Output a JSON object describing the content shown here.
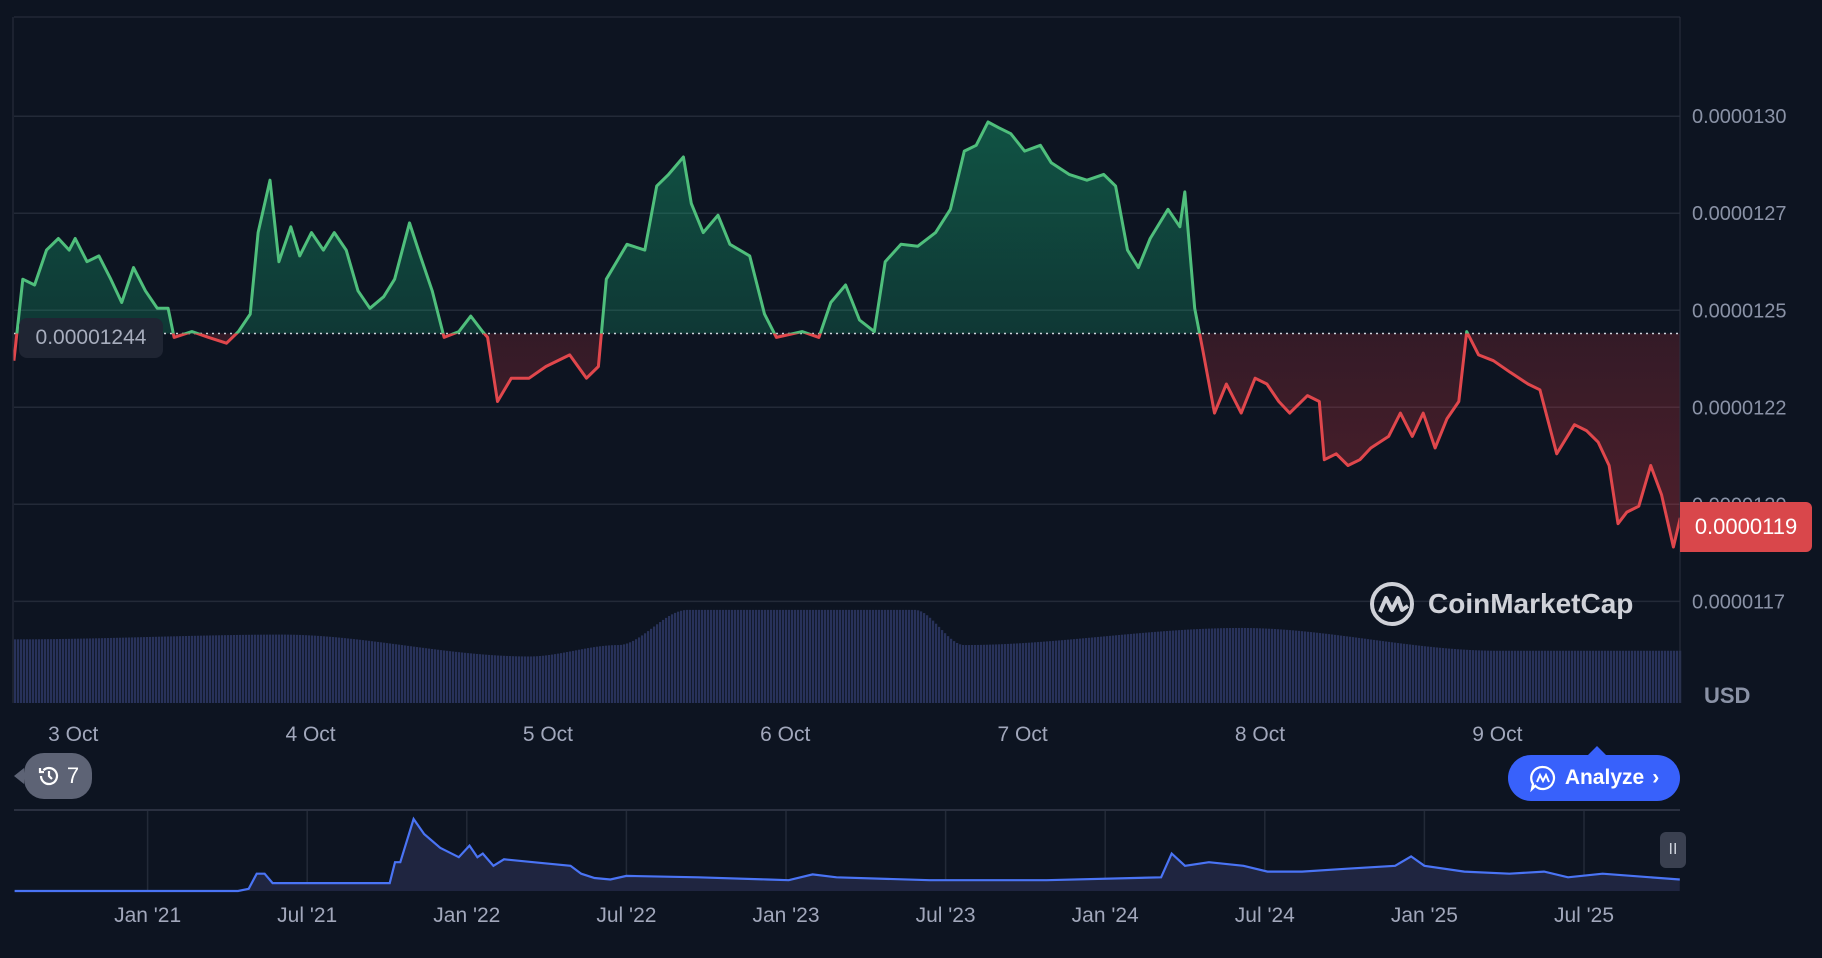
{
  "chart_data": {
    "type": "line",
    "title": "",
    "currency_label": "USD",
    "value_unit": "1e-7 USD",
    "x_unit": "hours since 3 Oct 00:00",
    "baseline_value": 124.4,
    "baseline_label": "0.00001244",
    "current_price_label": "0.0000119",
    "y_ticks": [
      {
        "value": 130,
        "label": "0.0000130"
      },
      {
        "value": 127.5,
        "label": "0.0000127"
      },
      {
        "value": 125,
        "label": "0.0000125"
      },
      {
        "value": 122.5,
        "label": "0.0000122"
      },
      {
        "value": 120,
        "label": "0.0000120"
      },
      {
        "value": 117.5,
        "label": "0.0000117"
      }
    ],
    "x_ticks": [
      {
        "hours": 0,
        "label": "3 Oct"
      },
      {
        "hours": 24,
        "label": "4 Oct"
      },
      {
        "hours": 48,
        "label": "5 Oct"
      },
      {
        "hours": 72,
        "label": "6 Oct"
      },
      {
        "hours": 96,
        "label": "7 Oct"
      },
      {
        "hours": 120,
        "label": "8 Oct"
      },
      {
        "hours": 144,
        "label": "9 Oct"
      }
    ],
    "ylim": [
      117.5,
      130.8
    ],
    "xlim": [
      -6,
      162.5
    ],
    "colors": {
      "up": "#16c784",
      "up_line": "#4fbf7c",
      "down": "#ea3943",
      "down_line": "#e0474c",
      "volume": "#2a3457",
      "navigator": "#4a74f5"
    },
    "series": [
      {
        "name": "price",
        "points": [
          [
            -6.0,
            123.7
          ],
          [
            -5.1,
            125.8
          ],
          [
            -3.9,
            125.65
          ],
          [
            -2.7,
            126.55
          ],
          [
            -1.5,
            126.85
          ],
          [
            -0.4,
            126.55
          ],
          [
            0.2,
            126.85
          ],
          [
            1.4,
            126.25
          ],
          [
            2.6,
            126.4
          ],
          [
            3.8,
            125.8
          ],
          [
            4.9,
            125.2
          ],
          [
            6.1,
            126.1
          ],
          [
            7.3,
            125.5
          ],
          [
            8.5,
            125.05
          ],
          [
            9.6,
            125.05
          ],
          [
            10.2,
            124.3
          ],
          [
            12.0,
            124.45
          ],
          [
            13.7,
            124.3
          ],
          [
            15.5,
            124.15
          ],
          [
            16.7,
            124.45
          ],
          [
            17.9,
            124.9
          ],
          [
            18.7,
            127.0
          ],
          [
            19.9,
            128.35
          ],
          [
            20.8,
            126.25
          ],
          [
            22.0,
            127.15
          ],
          [
            22.9,
            126.4
          ],
          [
            24.1,
            127.0
          ],
          [
            25.3,
            126.55
          ],
          [
            26.4,
            127.0
          ],
          [
            27.6,
            126.55
          ],
          [
            28.8,
            125.5
          ],
          [
            30.0,
            125.05
          ],
          [
            31.4,
            125.35
          ],
          [
            32.5,
            125.8
          ],
          [
            34.0,
            127.25
          ],
          [
            35.1,
            126.4
          ],
          [
            36.3,
            125.5
          ],
          [
            37.5,
            124.3
          ],
          [
            39.0,
            124.45
          ],
          [
            40.2,
            124.85
          ],
          [
            41.4,
            124.45
          ],
          [
            41.9,
            124.3
          ],
          [
            42.9,
            122.65
          ],
          [
            44.3,
            123.25
          ],
          [
            46.1,
            123.25
          ],
          [
            47.8,
            123.55
          ],
          [
            50.2,
            123.85
          ],
          [
            51.9,
            123.25
          ],
          [
            53.1,
            123.55
          ],
          [
            53.9,
            125.8
          ],
          [
            56.0,
            126.7
          ],
          [
            57.8,
            126.55
          ],
          [
            59.0,
            128.2
          ],
          [
            60.2,
            128.5
          ],
          [
            61.7,
            128.95
          ],
          [
            62.5,
            127.75
          ],
          [
            63.7,
            127.0
          ],
          [
            65.2,
            127.45
          ],
          [
            66.4,
            126.7
          ],
          [
            68.4,
            126.4
          ],
          [
            69.9,
            124.9
          ],
          [
            71.1,
            124.3
          ],
          [
            73.7,
            124.45
          ],
          [
            75.4,
            124.3
          ],
          [
            76.6,
            125.2
          ],
          [
            78.1,
            125.65
          ],
          [
            79.5,
            124.75
          ],
          [
            81.0,
            124.45
          ],
          [
            82.1,
            126.25
          ],
          [
            83.7,
            126.7
          ],
          [
            85.4,
            126.65
          ],
          [
            87.2,
            127.0
          ],
          [
            88.7,
            127.6
          ],
          [
            90.1,
            129.1
          ],
          [
            91.3,
            129.25
          ],
          [
            92.5,
            129.85
          ],
          [
            93.6,
            129.7
          ],
          [
            94.8,
            129.55
          ],
          [
            96.2,
            129.1
          ],
          [
            97.8,
            129.25
          ],
          [
            98.9,
            128.8
          ],
          [
            100.7,
            128.5
          ],
          [
            102.5,
            128.35
          ],
          [
            104.2,
            128.5
          ],
          [
            105.4,
            128.2
          ],
          [
            106.6,
            126.55
          ],
          [
            107.7,
            126.1
          ],
          [
            108.9,
            126.85
          ],
          [
            110.7,
            127.6
          ],
          [
            111.9,
            127.15
          ],
          [
            112.4,
            128.05
          ],
          [
            113.4,
            125.05
          ],
          [
            114.2,
            124.0
          ],
          [
            115.4,
            122.35
          ],
          [
            116.6,
            123.1
          ],
          [
            118.1,
            122.35
          ],
          [
            119.5,
            123.25
          ],
          [
            120.7,
            123.1
          ],
          [
            121.9,
            122.65
          ],
          [
            123.0,
            122.35
          ],
          [
            124.8,
            122.8
          ],
          [
            126.0,
            122.65
          ],
          [
            126.5,
            121.15
          ],
          [
            127.7,
            121.3
          ],
          [
            128.9,
            121.0
          ],
          [
            130.1,
            121.15
          ],
          [
            131.2,
            121.45
          ],
          [
            133.0,
            121.75
          ],
          [
            134.2,
            122.35
          ],
          [
            135.4,
            121.75
          ],
          [
            136.5,
            122.35
          ],
          [
            137.7,
            121.45
          ],
          [
            138.9,
            122.2
          ],
          [
            140.1,
            122.65
          ],
          [
            140.9,
            124.45
          ],
          [
            142.1,
            123.85
          ],
          [
            143.6,
            123.7
          ],
          [
            145.3,
            123.4
          ],
          [
            147.1,
            123.1
          ],
          [
            148.3,
            122.95
          ],
          [
            150.0,
            121.3
          ],
          [
            151.8,
            122.05
          ],
          [
            153.0,
            121.9
          ],
          [
            154.2,
            121.6
          ],
          [
            155.3,
            121.0
          ],
          [
            156.2,
            119.5
          ],
          [
            157.1,
            119.8
          ],
          [
            158.3,
            119.95
          ],
          [
            159.5,
            121.0
          ],
          [
            160.6,
            120.25
          ],
          [
            161.8,
            118.9
          ],
          [
            162.5,
            119.65
          ]
        ]
      }
    ],
    "volume_relative": [
      [
        -6,
        0.67
      ],
      [
        21,
        0.72
      ],
      [
        46,
        0.49
      ],
      [
        55,
        0.61
      ],
      [
        62,
        0.98
      ],
      [
        85,
        0.98
      ],
      [
        90,
        0.61
      ],
      [
        118,
        0.79
      ],
      [
        144,
        0.55
      ],
      [
        162.5,
        0.55
      ]
    ],
    "navigator": {
      "x_unit": "months since Jan 2021",
      "x_ticks": [
        {
          "m": 0,
          "label": "Jan '21"
        },
        {
          "m": 6,
          "label": "Jul '21"
        },
        {
          "m": 12,
          "label": "Jan '22"
        },
        {
          "m": 18,
          "label": "Jul '22"
        },
        {
          "m": 24,
          "label": "Jan '23"
        },
        {
          "m": 30,
          "label": "Jul '23"
        },
        {
          "m": 36,
          "label": "Jan '24"
        },
        {
          "m": 42,
          "label": "Jul '24"
        },
        {
          "m": 48,
          "label": "Jan '25"
        },
        {
          "m": 54,
          "label": "Jul '25"
        }
      ],
      "points": [
        [
          -5.0,
          0
        ],
        [
          3.4,
          0
        ],
        [
          3.8,
          0.03
        ],
        [
          4.1,
          0.24
        ],
        [
          4.4,
          0.24
        ],
        [
          4.7,
          0.11
        ],
        [
          7.6,
          0.11
        ],
        [
          9.1,
          0.11
        ],
        [
          9.3,
          0.4
        ],
        [
          9.5,
          0.4
        ],
        [
          10.0,
          1.0
        ],
        [
          10.4,
          0.79
        ],
        [
          11.0,
          0.6
        ],
        [
          11.7,
          0.47
        ],
        [
          12.1,
          0.63
        ],
        [
          12.4,
          0.47
        ],
        [
          12.6,
          0.52
        ],
        [
          13.0,
          0.35
        ],
        [
          13.4,
          0.44
        ],
        [
          14.5,
          0.4
        ],
        [
          15.9,
          0.35
        ],
        [
          16.3,
          0.24
        ],
        [
          16.8,
          0.18
        ],
        [
          17.4,
          0.16
        ],
        [
          18.0,
          0.21
        ],
        [
          20.7,
          0.19
        ],
        [
          23.3,
          0.16
        ],
        [
          24.1,
          0.15
        ],
        [
          25.0,
          0.23
        ],
        [
          25.9,
          0.19
        ],
        [
          29.4,
          0.15
        ],
        [
          33.8,
          0.15
        ],
        [
          38.1,
          0.19
        ],
        [
          38.5,
          0.52
        ],
        [
          39.0,
          0.35
        ],
        [
          39.9,
          0.4
        ],
        [
          41.2,
          0.35
        ],
        [
          42.1,
          0.27
        ],
        [
          43.4,
          0.27
        ],
        [
          45.1,
          0.31
        ],
        [
          46.9,
          0.35
        ],
        [
          47.5,
          0.48
        ],
        [
          48.0,
          0.35
        ],
        [
          49.5,
          0.27
        ],
        [
          51.2,
          0.24
        ],
        [
          52.5,
          0.27
        ],
        [
          53.4,
          0.19
        ],
        [
          54.7,
          0.24
        ],
        [
          56.5,
          0.19
        ],
        [
          57.6,
          0.16
        ]
      ]
    }
  },
  "ui": {
    "history_count": "7",
    "analyze_label": "Analyze",
    "watermark": "CoinMarketCap"
  }
}
